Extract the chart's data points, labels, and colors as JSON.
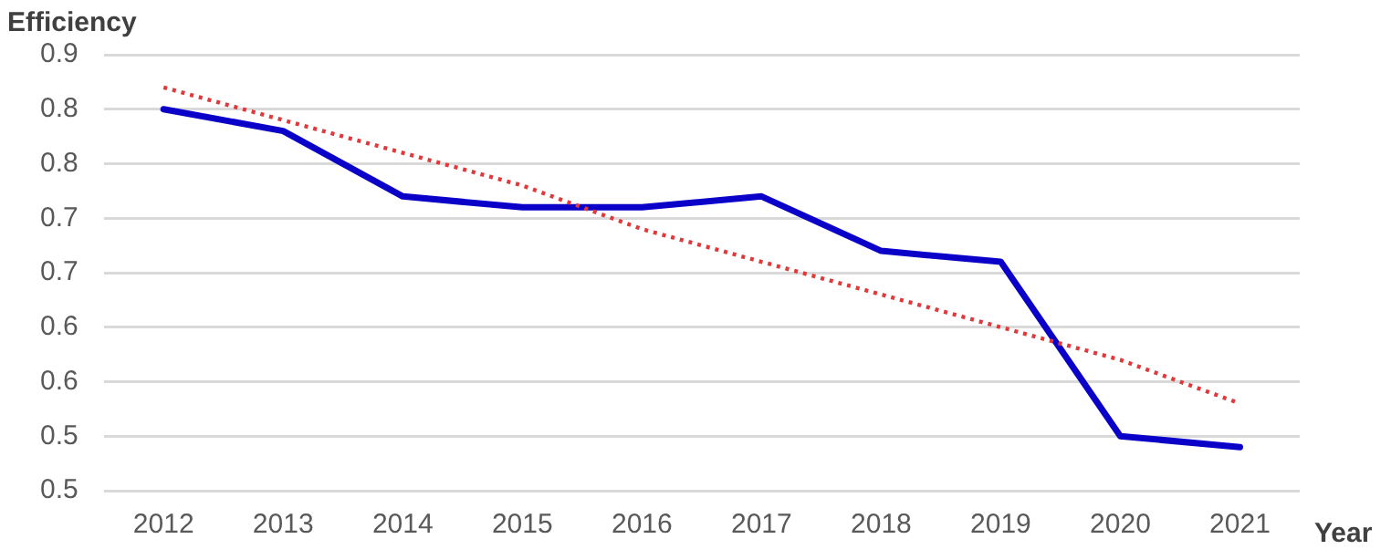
{
  "chart_data": {
    "type": "line",
    "xlabel": "Year",
    "ylabel": "Efficiency",
    "categories": [
      "2012",
      "2013",
      "2014",
      "2015",
      "2016",
      "2017",
      "2018",
      "2019",
      "2020",
      "2021"
    ],
    "series": [
      {
        "color": "#0a00c8",
        "values": [
          0.85,
          0.83,
          0.77,
          0.76,
          0.76,
          0.77,
          0.72,
          0.71,
          0.55,
          0.54
        ],
        "line_style": "solid"
      },
      {
        "type": "line",
        "color": "#e0393b",
        "values": [
          0.87,
          0.84,
          0.81,
          0.78,
          0.74,
          0.71,
          0.68,
          0.65,
          0.62,
          0.58
        ],
        "line_style": "dotted"
      }
    ],
    "ylim": [
      0.5,
      0.9
    ],
    "yticks": [
      0.9,
      {
        "value": 0.85,
        "label": "0.8"
      },
      0.8,
      {
        "value": 0.75,
        "label": "0.7"
      },
      0.7,
      {
        "value": 0.65,
        "label": "0.6"
      },
      0.6,
      {
        "value": 0.55,
        "label": "0.5"
      },
      0.5
    ],
    "grid": "y",
    "legend": false,
    "marker": "none"
  }
}
